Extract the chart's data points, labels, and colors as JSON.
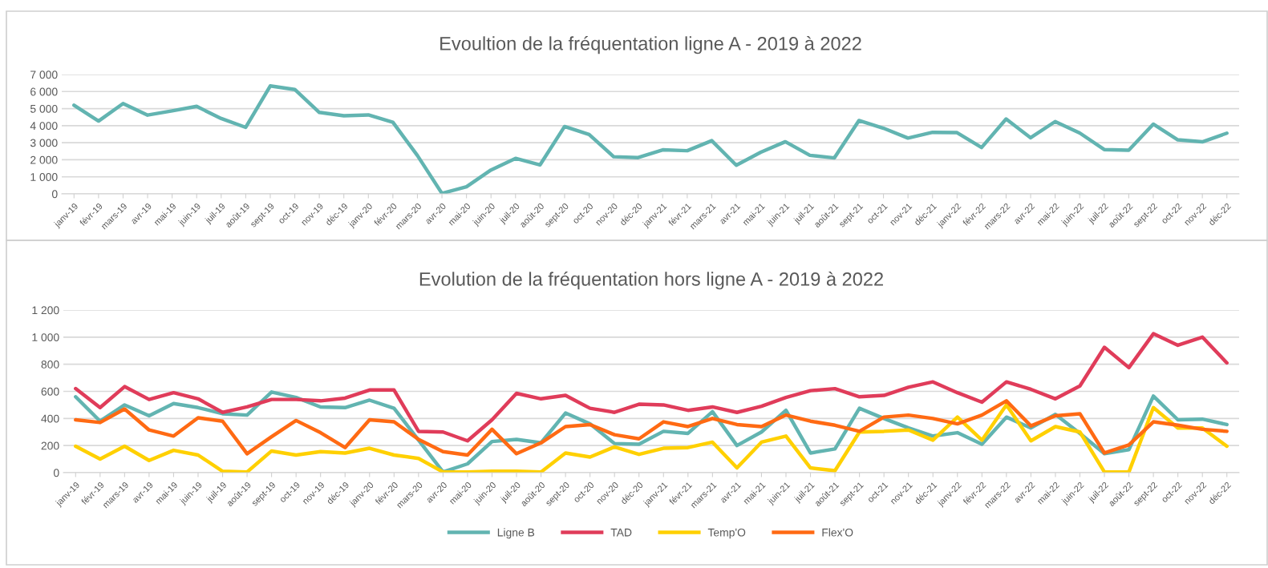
{
  "chart_data": [
    {
      "type": "line",
      "title": "Evoultion de la fréquentation ligne A - 2019 à 2022",
      "categories": [
        "janv-19",
        "févr-19",
        "mars-19",
        "avr-19",
        "mai-19",
        "juin-19",
        "juil-19",
        "août-19",
        "sept-19",
        "oct-19",
        "nov-19",
        "déc-19",
        "janv-20",
        "févr-20",
        "mars-20",
        "avr-20",
        "mai-20",
        "juin-20",
        "juil-20",
        "août-20",
        "sept-20",
        "oct-20",
        "nov-20",
        "déc-20",
        "janv-21",
        "févr-21",
        "mars-21",
        "avr-21",
        "mai-21",
        "juin-21",
        "juil-21",
        "août-21",
        "sept-21",
        "oct-21",
        "nov-21",
        "déc-21",
        "janv-22",
        "févr-22",
        "mars-22",
        "avr-22",
        "mai-22",
        "juin-22",
        "juil-22",
        "août-22",
        "sept-22",
        "oct-22",
        "nov-22",
        "déc-22"
      ],
      "series": [
        {
          "color": "#62b4b1",
          "values": [
            5200,
            4270,
            5300,
            4620,
            4870,
            5130,
            4420,
            3900,
            6330,
            6120,
            4780,
            4580,
            4630,
            4200,
            2250,
            30,
            420,
            1400,
            2080,
            1700,
            3950,
            3480,
            2180,
            2130,
            2580,
            2530,
            3120,
            1680,
            2440,
            3060,
            2260,
            2110,
            4300,
            3850,
            3270,
            3610,
            3590,
            2720,
            4390,
            3290,
            4240,
            3570,
            2600,
            2560,
            4090,
            3170,
            3050,
            3560
          ]
        }
      ],
      "ylim": [
        0,
        7000
      ],
      "yticks": [
        {
          "value": 0,
          "label": "0"
        },
        {
          "value": 1000,
          "label": "1 000"
        },
        {
          "value": 2000,
          "label": "2 000"
        },
        {
          "value": 3000,
          "label": "3 000"
        },
        {
          "value": 4000,
          "label": "4 000"
        },
        {
          "value": 5000,
          "label": "5 000"
        },
        {
          "value": 6000,
          "label": "6 000"
        },
        {
          "value": 7000,
          "label": "7 000"
        }
      ],
      "grid": "y",
      "legend": false
    },
    {
      "type": "line",
      "title": "Evolution de la fréquentation hors ligne A - 2019 à 2022",
      "categories": [
        "janv-19",
        "févr-19",
        "mars-19",
        "avr-19",
        "mai-19",
        "juin-19",
        "juil-19",
        "août-19",
        "sept-19",
        "oct-19",
        "nov-19",
        "déc-19",
        "janv-20",
        "févr-20",
        "mars-20",
        "avr-20",
        "mai-20",
        "juin-20",
        "juil-20",
        "août-20",
        "sept-20",
        "oct-20",
        "nov-20",
        "déc-20",
        "janv-21",
        "févr-21",
        "mars-21",
        "avr-21",
        "mai-21",
        "juin-21",
        "juil-21",
        "août-21",
        "sept-21",
        "oct-21",
        "nov-21",
        "déc-21",
        "janv-22",
        "févr-22",
        "mars-22",
        "avr-22",
        "mai-22",
        "juin-22",
        "juil-22",
        "août-22",
        "sept-22",
        "oct-22",
        "nov-22",
        "déc-22"
      ],
      "series": [
        {
          "name": "Ligne B",
          "color": "#62b4b1",
          "values": [
            560,
            380,
            500,
            420,
            510,
            480,
            435,
            425,
            595,
            555,
            485,
            480,
            535,
            475,
            240,
            5,
            65,
            230,
            245,
            220,
            440,
            360,
            215,
            210,
            305,
            290,
            450,
            200,
            300,
            460,
            145,
            175,
            475,
            400,
            330,
            270,
            295,
            210,
            410,
            330,
            430,
            290,
            140,
            170,
            565,
            390,
            395,
            355
          ]
        },
        {
          "name": "TAD",
          "color": "#e03c5a",
          "values": [
            620,
            480,
            635,
            540,
            590,
            545,
            445,
            485,
            540,
            540,
            530,
            550,
            610,
            610,
            305,
            300,
            235,
            390,
            585,
            545,
            570,
            475,
            445,
            505,
            500,
            460,
            485,
            445,
            490,
            555,
            605,
            620,
            560,
            570,
            630,
            670,
            590,
            520,
            670,
            615,
            545,
            640,
            925,
            775,
            1025,
            940,
            1000,
            810
          ]
        },
        {
          "name": "Temp'O",
          "color": "#ffd000",
          "values": [
            195,
            100,
            195,
            90,
            165,
            130,
            10,
            5,
            160,
            130,
            155,
            145,
            180,
            130,
            105,
            5,
            5,
            10,
            10,
            5,
            145,
            115,
            190,
            135,
            180,
            185,
            225,
            35,
            225,
            270,
            35,
            15,
            300,
            305,
            315,
            240,
            410,
            240,
            500,
            235,
            340,
            300,
            5,
            5,
            480,
            330,
            330,
            195
          ]
        },
        {
          "name": "Flex'O",
          "color": "#ff6a13",
          "values": [
            390,
            370,
            470,
            315,
            270,
            405,
            380,
            140,
            265,
            385,
            295,
            185,
            390,
            375,
            245,
            155,
            130,
            320,
            140,
            220,
            340,
            355,
            280,
            250,
            375,
            340,
            400,
            355,
            340,
            425,
            380,
            350,
            305,
            410,
            425,
            400,
            360,
            425,
            530,
            345,
            420,
            435,
            145,
            205,
            375,
            350,
            320,
            305
          ]
        }
      ],
      "ylim": [
        0,
        1200
      ],
      "yticks": [
        {
          "value": 0,
          "label": "0"
        },
        {
          "value": 200,
          "label": "200"
        },
        {
          "value": 400,
          "label": "400"
        },
        {
          "value": 600,
          "label": "600"
        },
        {
          "value": 800,
          "label": "800"
        },
        {
          "value": 1000,
          "label": "1 000"
        },
        {
          "value": 1200,
          "label": "1 200"
        }
      ],
      "grid": "y",
      "legend": "bottom"
    }
  ]
}
